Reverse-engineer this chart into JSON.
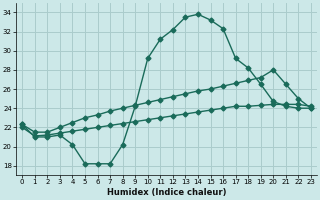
{
  "xlabel": "Humidex (Indice chaleur)",
  "background_color": "#cce8e8",
  "grid_color": "#aacccc",
  "line_color": "#1a6b5a",
  "xlim": [
    -0.5,
    23.5
  ],
  "ylim": [
    17.0,
    35.0
  ],
  "yticks": [
    18,
    20,
    22,
    24,
    26,
    28,
    30,
    32,
    34
  ],
  "xticks": [
    0,
    1,
    2,
    3,
    4,
    5,
    6,
    7,
    8,
    9,
    10,
    11,
    12,
    13,
    14,
    15,
    16,
    17,
    18,
    19,
    20,
    21,
    22,
    23
  ],
  "line1_x": [
    0,
    1,
    2,
    3,
    4,
    5,
    6,
    7,
    8,
    9,
    10,
    11,
    12,
    13,
    14,
    15,
    16,
    17,
    18,
    19,
    20,
    21,
    22,
    23
  ],
  "line1_y": [
    22.3,
    21.0,
    21.0,
    21.2,
    20.2,
    18.2,
    18.2,
    18.2,
    20.2,
    24.2,
    29.2,
    31.2,
    32.2,
    33.5,
    33.8,
    33.2,
    32.3,
    29.2,
    28.2,
    26.5,
    24.7,
    24.2,
    24.0,
    24.0
  ],
  "line2_x": [
    0,
    1,
    2,
    3,
    4,
    5,
    6,
    7,
    8,
    9,
    10,
    11,
    12,
    13,
    14,
    15,
    16,
    17,
    18,
    19,
    20,
    21,
    22,
    23
  ],
  "line2_y": [
    22.3,
    21.5,
    21.5,
    22.0,
    22.5,
    23.0,
    23.3,
    23.7,
    24.0,
    24.3,
    24.6,
    24.9,
    25.2,
    25.5,
    25.8,
    26.0,
    26.3,
    26.6,
    26.9,
    27.2,
    28.0,
    26.5,
    25.0,
    24.0
  ],
  "line3_x": [
    0,
    1,
    2,
    3,
    4,
    5,
    6,
    7,
    8,
    9,
    10,
    11,
    12,
    13,
    14,
    15,
    16,
    17,
    18,
    19,
    20,
    21,
    22,
    23
  ],
  "line3_y": [
    22.0,
    21.1,
    21.2,
    21.4,
    21.6,
    21.8,
    22.0,
    22.2,
    22.4,
    22.6,
    22.8,
    23.0,
    23.2,
    23.4,
    23.6,
    23.8,
    24.0,
    24.2,
    24.2,
    24.3,
    24.4,
    24.4,
    24.4,
    24.2
  ]
}
